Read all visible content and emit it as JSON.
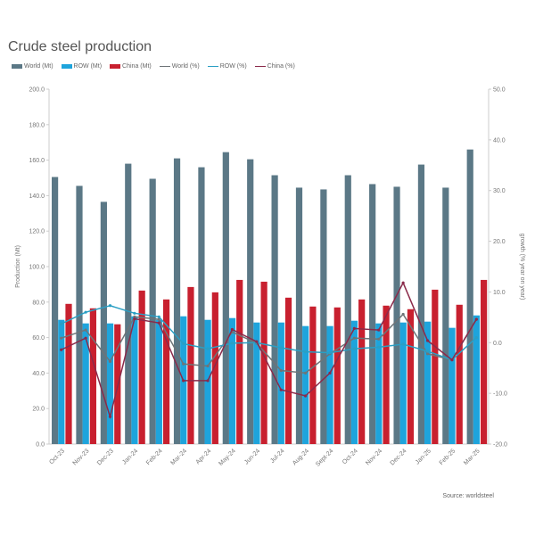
{
  "chart_data": {
    "type": "bar",
    "title": "Crude steel production",
    "categories": [
      "Oct-23",
      "Nov-23",
      "Dec-23",
      "Jan-24",
      "Feb-24",
      "Mar-24",
      "Apr-24",
      "May-24",
      "Jun-24",
      "Jul-24",
      "Aug-24",
      "Sept-24",
      "Oct-24",
      "Nov-24",
      "Dec-24",
      "Jan-25",
      "Feb-25",
      "Mar-25"
    ],
    "ylabel": "Production (Mt)",
    "y2label": "growth (% year on year)",
    "ylim": [
      0,
      200
    ],
    "y2lim": [
      -20,
      50
    ],
    "yticks": [
      "0.0",
      "20.0",
      "40.0",
      "60.0",
      "80.0",
      "100.0",
      "120.0",
      "140.0",
      "160.0",
      "180.0",
      "200.0"
    ],
    "y2ticks": [
      "-20.0",
      "-10.0",
      "0.0",
      "10.0",
      "20.0",
      "30.0",
      "40.0",
      "50.0"
    ],
    "grid": false,
    "legend_position": "top-left",
    "bar_series": [
      {
        "name": "World (Mt)",
        "color": "#5b7886",
        "values": [
          150.5,
          145.5,
          136.5,
          158,
          149.5,
          161,
          156,
          164.5,
          160.5,
          151.5,
          144.5,
          143.5,
          151.5,
          146.5,
          145,
          157.5,
          144.5,
          166
        ]
      },
      {
        "name": "ROW (Mt)",
        "color": "#1ea4dc",
        "values": [
          70,
          68,
          68,
          72,
          70,
          72,
          70,
          71,
          68.5,
          68.5,
          66.5,
          66.5,
          69.5,
          68,
          68.5,
          69,
          65.5,
          72.5
        ]
      },
      {
        "name": "China (Mt)",
        "color": "#c8202f",
        "values": [
          79,
          76.5,
          67.5,
          86.5,
          81.5,
          88.5,
          85.5,
          92.5,
          91.5,
          82.5,
          77.5,
          77,
          81.5,
          78,
          76,
          87,
          78.5,
          92.5
        ]
      }
    ],
    "line_series": [
      {
        "name": "World (%)",
        "color": "#6e7478",
        "values": [
          0.9,
          2.5,
          -3.7,
          5.1,
          4.6,
          -4.2,
          -4.6,
          2.1,
          -0.1,
          -5.5,
          -6.0,
          -2.2,
          0.9,
          0.7,
          5.6,
          -2.2,
          -3.4,
          4.6
        ]
      },
      {
        "name": "ROW (%)",
        "color": "#2a9fc4",
        "values": [
          3.7,
          6.0,
          7.3,
          5.8,
          5.1,
          -0.2,
          -1.2,
          -0.1,
          0.0,
          -1.0,
          -1.8,
          -2.0,
          -1.2,
          -0.9,
          -0.3,
          -1.7,
          -3.4,
          1.0
        ]
      },
      {
        "name": "China (%)",
        "color": "#8a2a4a",
        "values": [
          -1.4,
          0.9,
          -14.6,
          4.7,
          3.9,
          -7.5,
          -7.5,
          2.6,
          0.2,
          -9.3,
          -10.5,
          -6.0,
          2.8,
          2.5,
          11.8,
          0.4,
          -3.4,
          4.6
        ]
      }
    ]
  },
  "source": "Source: worldsteel"
}
